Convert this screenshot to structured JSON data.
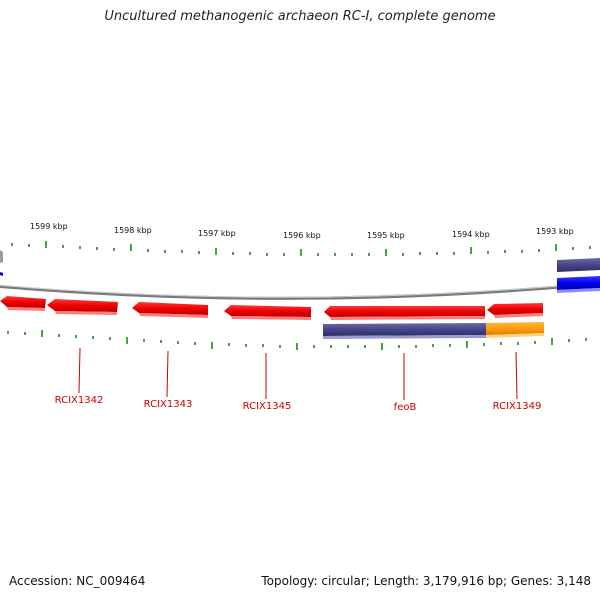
{
  "header": {
    "title": "Uncultured methanogenic archaeon RC-I, complete genome"
  },
  "footer": {
    "accession": "Accession: NC_009464",
    "stats": "Topology: circular; Length: 3,179,916 bp; Genes: 3,148"
  },
  "scale": {
    "ticks": [
      "1599 kbp",
      "1598 kbp",
      "1597 kbp",
      "1596 kbp",
      "1595 kbp",
      "1594 kbp",
      "1593 kbp"
    ]
  },
  "genes": {
    "labels": [
      "RCIX1342",
      "RCIX1343",
      "RCIX1345",
      "feoB",
      "RCIX1349"
    ]
  },
  "colors": {
    "gene": "#ff0000",
    "backbone": "#888888",
    "tick": "#1a8a1a",
    "label": "#cc0000",
    "blue": "#0000ee",
    "navy": "#4a4a8a",
    "orange": "#ff9900"
  }
}
